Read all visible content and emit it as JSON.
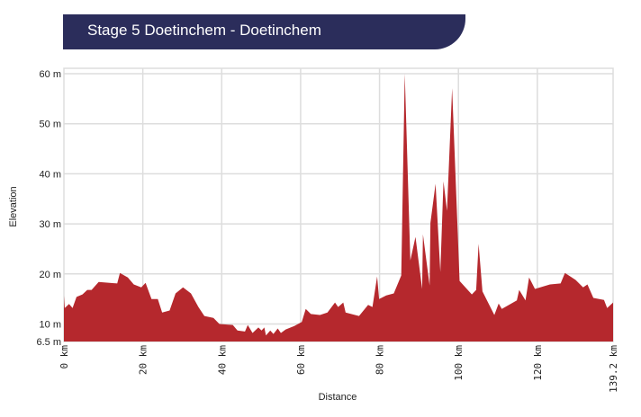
{
  "header": {
    "title": "Stage 5 Doetinchem - Doetinchem"
  },
  "colors": {
    "banner": "#2b2d5b",
    "fill": "#b5282d",
    "grid": "#dddddd"
  },
  "chart_data": {
    "type": "area",
    "title": "Stage 5 Doetinchem - Doetinchem",
    "xlabel": "Distance",
    "ylabel": "Elevation",
    "xlim": [
      0,
      139.2
    ],
    "ylim": [
      6.5,
      60
    ],
    "grid": true,
    "x_ticks": [
      0,
      20,
      40,
      60,
      80,
      100,
      120,
      139.2
    ],
    "x_tick_labels": [
      "0 km",
      "20 km",
      "40 km",
      "60 km",
      "80 km",
      "100 km",
      "120 km",
      "139.2 km"
    ],
    "y_ticks": [
      6.5,
      10,
      20,
      30,
      40,
      50,
      60
    ],
    "y_tick_labels": [
      "6.5 m",
      "10 m",
      "20 m",
      "30 m",
      "40 m",
      "50 m",
      "60 m"
    ],
    "x": [
      0,
      0.2,
      1.3,
      2.2,
      3.2,
      4.7,
      5.9,
      7.0,
      8.8,
      13.5,
      14.2,
      16.2,
      17.7,
      19.6,
      20.7,
      22.2,
      23.8,
      24.9,
      26.8,
      28.3,
      30.2,
      32.2,
      34.1,
      35.6,
      37.9,
      39.4,
      42.8,
      44.0,
      45.9,
      46.6,
      47.8,
      49.3,
      50.1,
      50.8,
      51.2,
      52.3,
      53.1,
      54.2,
      55.0,
      56.2,
      58.4,
      60.3,
      61.3,
      62.6,
      64.9,
      66.8,
      68.7,
      69.5,
      70.8,
      71.4,
      74.8,
      77.1,
      78.2,
      79.4,
      79.9,
      81.7,
      83.6,
      85.5,
      86.4,
      87.8,
      89.1,
      90.8,
      91.0,
      92.7,
      92.9,
      94.2,
      95.4,
      96.2,
      97.1,
      98.4,
      100.3,
      103.4,
      104.5,
      105.1,
      106.1,
      109.1,
      110.2,
      111.0,
      114.8,
      115.4,
      117.0,
      117.9,
      119.4,
      123.2,
      125.9,
      127.0,
      129.7,
      131.6,
      132.7,
      134.2,
      136.9,
      137.7,
      139.2
    ],
    "y": [
      15.6,
      13.2,
      14,
      13.2,
      15.4,
      15.9,
      16.8,
      16.8,
      18.4,
      18.1,
      20.2,
      19.3,
      17.9,
      17.3,
      18.2,
      15,
      15,
      12.3,
      12.7,
      16.1,
      17.3,
      16.1,
      13.4,
      11.6,
      11.2,
      10,
      9.8,
      8.7,
      8.5,
      9.8,
      8.2,
      9.3,
      8.7,
      9.3,
      7.7,
      8.7,
      8,
      9.1,
      8.2,
      8.9,
      9.6,
      10.4,
      13,
      12,
      11.8,
      12.3,
      14.3,
      13.4,
      14.3,
      12.3,
      11.6,
      13.8,
      13.4,
      19.5,
      15,
      15.7,
      16.1,
      19.7,
      60,
      22.7,
      27.4,
      17,
      27.9,
      17.7,
      30.2,
      38,
      20.4,
      38.5,
      32.6,
      57.1,
      18.6,
      15.9,
      16.8,
      26,
      16.5,
      11.8,
      14.1,
      13,
      14.7,
      16.8,
      14.7,
      19.3,
      17,
      17.9,
      18.1,
      20.2,
      18.8,
      17.3,
      17.9,
      15.2,
      14.8,
      13.2,
      14.3
    ]
  }
}
